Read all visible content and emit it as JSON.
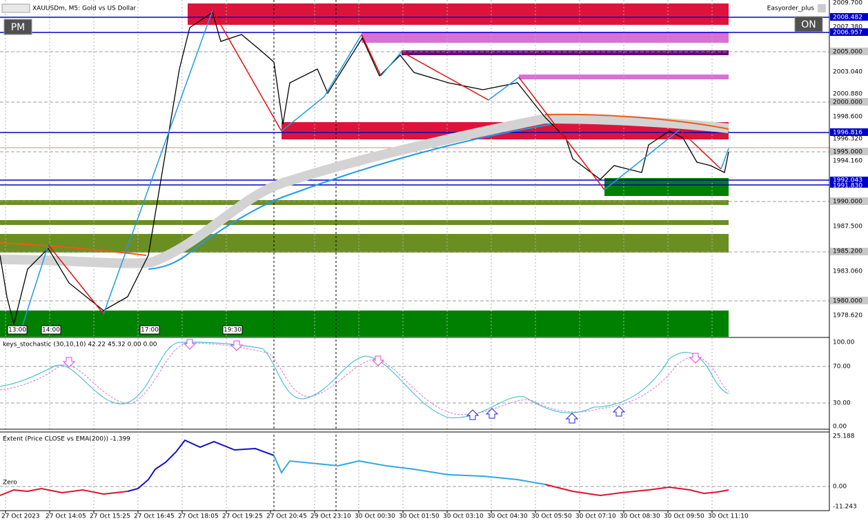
{
  "header": {
    "symbol": "XAUUSDm, M5:  Gold vs US Dollar",
    "expert": "Easyorder_plus"
  },
  "buttons": {
    "left": "PM",
    "right": "ON"
  },
  "price_labels": [
    "2009.700",
    "2008.482",
    "2007.380",
    "2006.957",
    "2005.000",
    "2003.040",
    "2000.880",
    "2000.000",
    "1998.600",
    "1996.816",
    "1996.320",
    "1995.000",
    "1994.160",
    "1992.043",
    "1991.830",
    "1990.000",
    "1987.500",
    "1985.200",
    "1983.060",
    "1980.000",
    "1978.620"
  ],
  "hour_markers": [
    "13:00",
    "14:00",
    "17:00",
    "19:30"
  ],
  "stochastic": {
    "title": "keys_stochastic (30,10,10) 42.22 45.32 0.00 0.00",
    "levels": [
      "100.00",
      "70.00",
      "30.00",
      "0.00"
    ]
  },
  "extent": {
    "title": "Extent (Price CLOSE vs EMA(200)) -1.399",
    "zero": "Zero",
    "levels": [
      "25.188",
      "0.00",
      "-11.243"
    ]
  },
  "time_labels": [
    "27 Oct 2023",
    "27 Oct 14:05",
    "27 Oct 15:25",
    "27 Oct 16:45",
    "27 Oct 18:05",
    "27 Oct 19:25",
    "27 Oct 20:45",
    "29 Oct 23:10",
    "30 Oct 00:30",
    "30 Oct 01:50",
    "30 Oct 03:10",
    "30 Oct 04:30",
    "30 Oct 05:50",
    "30 Oct 07:10",
    "30 Oct 08:30",
    "30 Oct 09:50",
    "30 Oct 11:10"
  ]
}
